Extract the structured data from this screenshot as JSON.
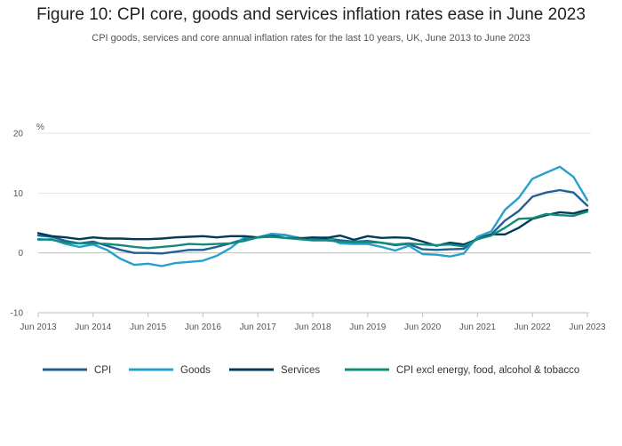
{
  "header": {
    "title": "Figure 10: CPI core, goods and services inflation rates ease in June 2023",
    "subtitle": "CPI goods, services and core annual inflation rates for the last 10 years, UK, June 2013 to June 2023"
  },
  "chart_data": {
    "type": "line",
    "title": "Figure 10: CPI core, goods and services inflation rates ease in June 2023",
    "subtitle": "CPI goods, services and core annual inflation rates for the last 10 years, UK, June 2013 to June 2023",
    "ylabel": "%",
    "xlabel": "",
    "ylim": [
      -10,
      20
    ],
    "yticks": [
      "20",
      "10",
      "0",
      "-10"
    ],
    "xticks": [
      "Jun 2013",
      "Jun 2014",
      "Jun 2015",
      "Jun 2016",
      "Jun 2017",
      "Jun 2018",
      "Jun 2019",
      "Jun 2020",
      "Jun 2021",
      "Jun 2022",
      "Jun 2023"
    ],
    "grid": true,
    "legend_position": "bottom",
    "x": [
      "Jun 2013",
      "Sep 2013",
      "Dec 2013",
      "Mar 2014",
      "Jun 2014",
      "Sep 2014",
      "Dec 2014",
      "Mar 2015",
      "Jun 2015",
      "Sep 2015",
      "Dec 2015",
      "Mar 2016",
      "Jun 2016",
      "Sep 2016",
      "Dec 2016",
      "Mar 2017",
      "Jun 2017",
      "Sep 2017",
      "Dec 2017",
      "Mar 2018",
      "Jun 2018",
      "Sep 2018",
      "Dec 2018",
      "Mar 2019",
      "Jun 2019",
      "Sep 2019",
      "Dec 2019",
      "Mar 2020",
      "Jun 2020",
      "Sep 2020",
      "Dec 2020",
      "Mar 2021",
      "Jun 2021",
      "Sep 2021",
      "Dec 2021",
      "Mar 2022",
      "Jun 2022",
      "Sep 2022",
      "Dec 2022",
      "Mar 2023",
      "Jun 2023"
    ],
    "series": [
      {
        "name": "CPI",
        "color": "#206095",
        "values": [
          2.9,
          2.7,
          2.0,
          1.6,
          1.9,
          1.2,
          0.5,
          0.0,
          0.0,
          -0.1,
          0.2,
          0.5,
          0.5,
          1.0,
          1.6,
          2.3,
          2.6,
          3.0,
          3.0,
          2.5,
          2.4,
          2.4,
          2.1,
          1.9,
          2.0,
          1.7,
          1.3,
          1.5,
          0.6,
          0.5,
          0.6,
          0.7,
          2.5,
          3.1,
          5.4,
          7.0,
          9.4,
          10.1,
          10.5,
          10.1,
          7.9
        ]
      },
      {
        "name": "Goods",
        "color": "#27a0cc",
        "values": [
          2.2,
          2.3,
          1.5,
          1.0,
          1.4,
          0.5,
          -1.0,
          -2.0,
          -1.8,
          -2.2,
          -1.7,
          -1.5,
          -1.3,
          -0.5,
          0.8,
          2.6,
          2.6,
          3.2,
          3.0,
          2.4,
          2.5,
          2.6,
          1.6,
          1.5,
          1.5,
          1.0,
          0.4,
          1.2,
          -0.2,
          -0.3,
          -0.6,
          -0.1,
          2.7,
          3.6,
          7.2,
          9.2,
          12.4,
          13.4,
          14.4,
          12.7,
          8.8
        ]
      },
      {
        "name": "Services",
        "color": "#003c57",
        "values": [
          3.3,
          2.8,
          2.6,
          2.3,
          2.6,
          2.4,
          2.4,
          2.3,
          2.3,
          2.4,
          2.6,
          2.7,
          2.8,
          2.6,
          2.8,
          2.8,
          2.6,
          2.8,
          2.5,
          2.4,
          2.6,
          2.5,
          2.9,
          2.2,
          2.8,
          2.5,
          2.6,
          2.5,
          1.9,
          1.2,
          1.7,
          1.4,
          2.3,
          3.1,
          3.1,
          4.2,
          5.7,
          6.3,
          6.8,
          6.6,
          7.2
        ]
      },
      {
        "name": "CPI excl energy, food, alcohol & tobacco",
        "color": "#118c7b",
        "values": [
          2.3,
          2.2,
          1.7,
          1.6,
          1.6,
          1.5,
          1.3,
          1.0,
          0.8,
          1.0,
          1.2,
          1.5,
          1.4,
          1.5,
          1.6,
          2.0,
          2.6,
          2.7,
          2.5,
          2.3,
          2.1,
          2.1,
          1.9,
          1.8,
          1.8,
          1.7,
          1.4,
          1.6,
          1.4,
          1.3,
          1.4,
          1.1,
          2.3,
          2.9,
          4.2,
          5.7,
          5.8,
          6.5,
          6.3,
          6.2,
          6.9
        ]
      }
    ]
  }
}
